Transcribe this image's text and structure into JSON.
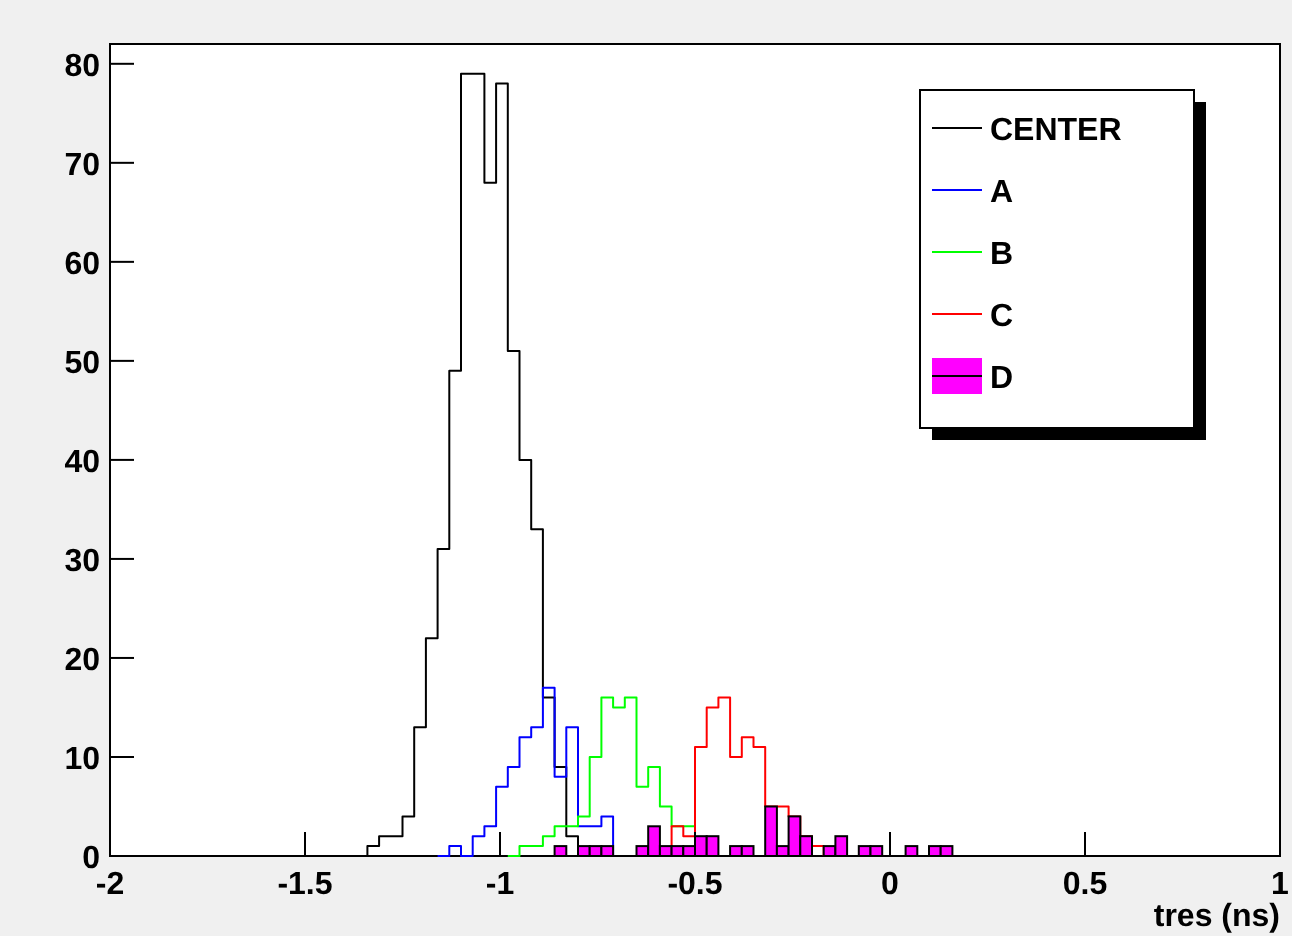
{
  "chart_data": {
    "type": "histogram",
    "xlabel": "tres (ns)",
    "bins": [
      -0.86,
      -0.83,
      -0.8,
      -0.77,
      -0.74,
      -0.71,
      -0.68,
      -0.65,
      -0.62,
      -0.59,
      -0.56,
      -0.53,
      -0.5,
      -0.47,
      -0.44,
      -0.41,
      -0.38,
      -0.35,
      -0.32,
      -0.29,
      -0.26,
      -0.23,
      -0.2,
      -0.17,
      -0.14,
      -0.11,
      -0.08,
      -0.05,
      -0.02,
      0.01,
      0.04,
      0.07,
      0.1,
      0.13,
      0.16
    ],
    "series": [
      {
        "name": "CENTER",
        "type": "step",
        "color": "#000000",
        "x": [
          -1.37,
          -1.34,
          -1.31,
          -1.28,
          -1.25,
          -1.22,
          -1.19,
          -1.16,
          -1.13,
          -1.1,
          -1.07,
          -1.04,
          -1.01,
          -0.98,
          -0.95,
          -0.92,
          -0.89,
          -0.86,
          -0.83,
          -0.8
        ],
        "values": [
          0,
          1,
          2,
          2,
          4,
          13,
          22,
          31,
          49,
          79,
          79,
          68,
          78,
          51,
          40,
          33,
          16,
          9,
          2,
          0
        ]
      },
      {
        "name": "A",
        "type": "step",
        "color": "#0000ff",
        "x": [
          -1.16,
          -1.13,
          -1.1,
          -1.07,
          -1.04,
          -1.01,
          -0.98,
          -0.95,
          -0.92,
          -0.89,
          -0.86,
          -0.83,
          -0.8,
          -0.77,
          -0.74,
          -0.71
        ],
        "values": [
          0,
          1,
          0,
          2,
          3,
          7,
          9,
          12,
          13,
          17,
          8,
          13,
          3,
          3,
          4,
          0
        ]
      },
      {
        "name": "B",
        "type": "step",
        "color": "#00ff00",
        "x": [
          -0.98,
          -0.95,
          -0.92,
          -0.89,
          -0.86,
          -0.83,
          -0.8,
          -0.77,
          -0.74,
          -0.71,
          -0.68,
          -0.65,
          -0.62,
          -0.59,
          -0.56,
          -0.53,
          -0.5
        ],
        "values": [
          0,
          1,
          1,
          2,
          3,
          3,
          4,
          10,
          16,
          15,
          16,
          7,
          9,
          5,
          3,
          3,
          0
        ]
      },
      {
        "name": "C",
        "type": "step",
        "color": "#ff0000",
        "x": [
          -0.59,
          -0.56,
          -0.53,
          -0.5,
          -0.47,
          -0.44,
          -0.41,
          -0.38,
          -0.35,
          -0.32,
          -0.29,
          -0.26,
          -0.23,
          -0.2,
          -0.17
        ],
        "values": [
          0,
          3,
          2,
          11,
          15,
          16,
          10,
          12,
          11,
          5,
          5,
          4,
          2,
          1,
          0
        ]
      },
      {
        "name": "D",
        "color": "#ff00ff",
        "values": [
          1,
          0,
          1,
          1,
          1,
          0,
          0,
          1,
          3,
          1,
          1,
          1,
          2,
          2,
          0,
          1,
          1,
          0,
          5,
          1,
          4,
          2,
          0,
          1,
          2,
          0,
          1,
          1,
          0,
          0,
          1,
          0,
          1,
          1
        ]
      }
    ],
    "xlim": [
      -2,
      1
    ],
    "xticks": [
      -2,
      -1.5,
      -1,
      -0.5,
      0,
      0.5,
      1
    ],
    "ylim": [
      0,
      82
    ],
    "yticks": [
      0,
      10,
      20,
      30,
      40,
      50,
      60,
      70,
      80
    ],
    "legend": "top right"
  }
}
